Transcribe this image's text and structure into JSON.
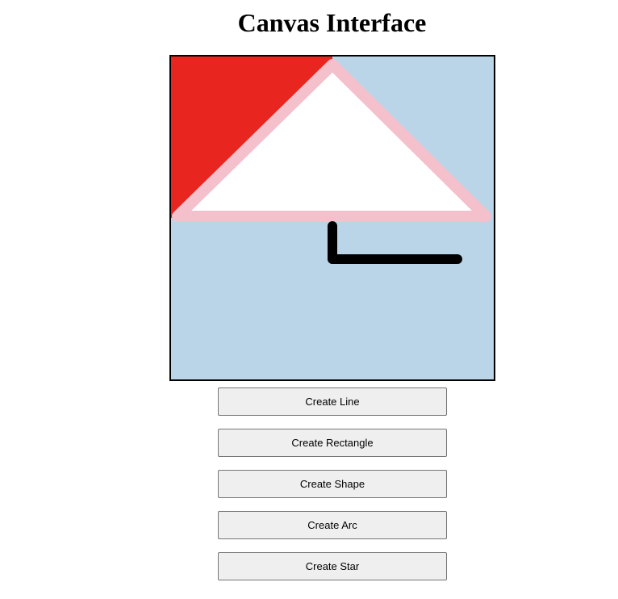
{
  "page": {
    "title": "Canvas Interface"
  },
  "canvas": {
    "background_color": "#bad5e7",
    "red_fill_color": "#e8251f",
    "triangle_fill_color": "#ffffff",
    "triangle_stroke_color": "#f4c0cb",
    "line_color": "#000000"
  },
  "buttons": {
    "line": "Create Line",
    "rectangle": "Create Rectangle",
    "shape": "Create Shape",
    "arc": "Create Arc",
    "star": "Create Star"
  }
}
